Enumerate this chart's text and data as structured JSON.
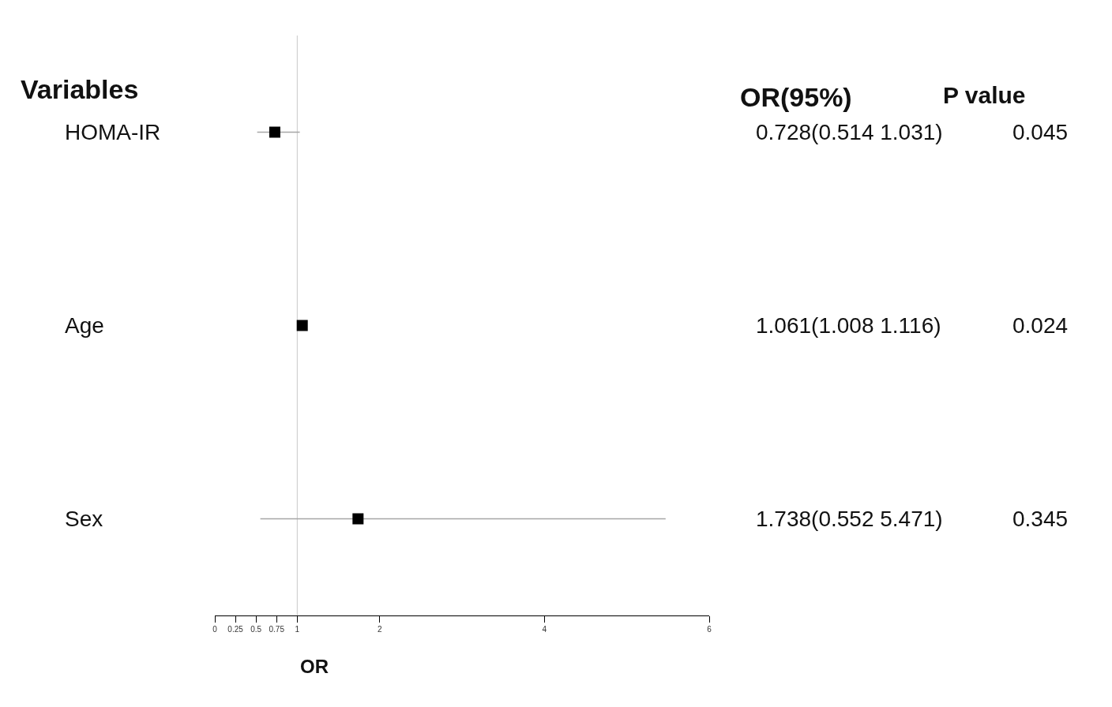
{
  "chart_data": {
    "type": "scatter",
    "orientation": "horizontal",
    "xlabel": "OR",
    "categories": [
      "HOMA-IR",
      "Age",
      "Sex"
    ],
    "values": [
      0.728,
      1.061,
      1.738
    ],
    "errors": [
      [
        0.514,
        1.031
      ],
      [
        1.008,
        1.116
      ],
      [
        0.552,
        5.471
      ]
    ],
    "value_labels": [
      "0.728(0.514 1.031)",
      "1.061(1.008 1.116)",
      "1.738(0.552 5.471)"
    ],
    "color": "#000000",
    "marker": "square",
    "xlim": [
      0,
      6
    ],
    "xticks": [
      0,
      0.25,
      0.5,
      0.75,
      1,
      2,
      4,
      6
    ],
    "ref_lines": [
      {
        "axis": "x",
        "value": 1,
        "color": "#c8c8c8"
      }
    ],
    "annotations": [
      "Variables",
      "OR(95%)",
      "P value",
      "0.045",
      "0.024",
      "0.345"
    ],
    "grid": false,
    "legend": false
  }
}
